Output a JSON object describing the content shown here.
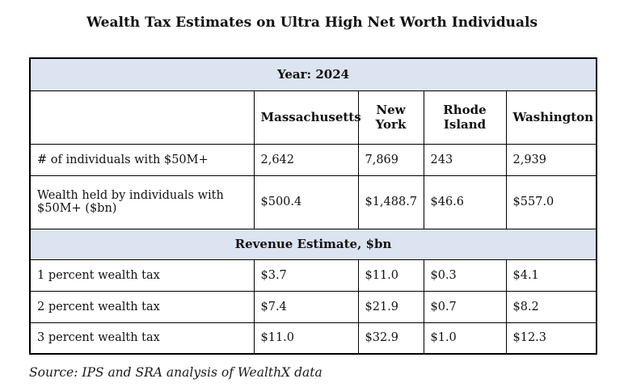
{
  "title": "Wealth Tax Estimates on Ultra High Net Worth Individuals",
  "source_note": "Source: IPS and SRA analysis of WealthX data",
  "colors": {
    "band_background": "#dce4f1",
    "border": "#000000",
    "text": "#111111"
  },
  "table": {
    "year_header": "Year: 2024",
    "columns": [
      "Massachusetts",
      "New York",
      "Rhode Island",
      "Washington"
    ],
    "rows": [
      {
        "label": "# of individuals with $50M+",
        "values": [
          "2,642",
          "7,869",
          "243",
          "2,939"
        ]
      },
      {
        "label": "Wealth held by individuals with $50M+ ($bn)",
        "values": [
          "$500.4",
          "$1,488.7",
          "$46.6",
          "$557.0"
        ]
      }
    ],
    "section_header": "Revenue Estimate, $bn",
    "revenue_rows": [
      {
        "label": "1 percent wealth tax",
        "values": [
          "$3.7",
          "$11.0",
          "$0.3",
          "$4.1"
        ]
      },
      {
        "label": "2 percent wealth tax",
        "values": [
          "$7.4",
          "$21.9",
          "$0.7",
          "$8.2"
        ]
      },
      {
        "label": "3 percent wealth tax",
        "values": [
          "$11.0",
          "$32.9",
          "$1.0",
          "$12.3"
        ]
      }
    ]
  },
  "chart_data": {
    "type": "table",
    "title": "Wealth Tax Estimates on Ultra High Net Worth Individuals",
    "year": "2024",
    "categories": [
      "Massachusetts",
      "New York",
      "Rhode Island",
      "Washington"
    ],
    "series": [
      {
        "name": "# of individuals with $50M+",
        "values": [
          2642,
          7869,
          243,
          2939
        ]
      },
      {
        "name": "Wealth held by individuals with $50M+ ($bn)",
        "values": [
          500.4,
          1488.7,
          46.6,
          557.0
        ]
      },
      {
        "name": "1 percent wealth tax ($bn)",
        "values": [
          3.7,
          11.0,
          0.3,
          4.1
        ]
      },
      {
        "name": "2 percent wealth tax ($bn)",
        "values": [
          7.4,
          21.9,
          0.7,
          8.2
        ]
      },
      {
        "name": "3 percent wealth tax ($bn)",
        "values": [
          11.0,
          32.9,
          1.0,
          12.3
        ]
      }
    ]
  }
}
